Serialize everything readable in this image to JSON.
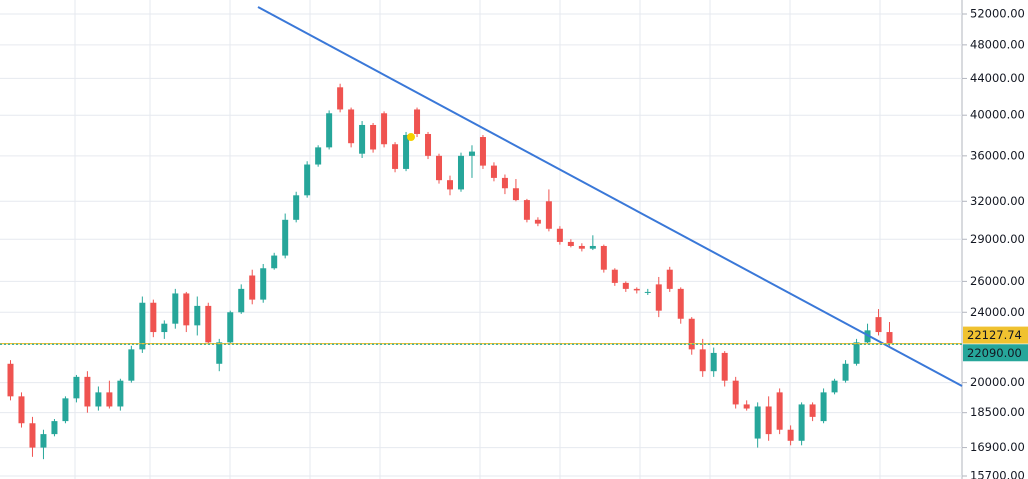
{
  "chart_data": {
    "type": "candlestick",
    "log_scale": true,
    "grid": true,
    "up_color": "#26a69a",
    "down_color": "#ef5350",
    "ylim": [
      15578,
      53920
    ],
    "yticks": [
      {
        "value": 15700,
        "label": "15700.00"
      },
      {
        "value": 16900,
        "label": "16900.00"
      },
      {
        "value": 18500,
        "label": "18500.00"
      },
      {
        "value": 20000,
        "label": "20000.00"
      },
      {
        "value": 24000,
        "label": "24000.00"
      },
      {
        "value": 26000,
        "label": "26000.00"
      },
      {
        "value": 29000,
        "label": "29000.00"
      },
      {
        "value": 32000,
        "label": "32000.00"
      },
      {
        "value": 36000,
        "label": "36000.00"
      },
      {
        "value": 40000,
        "label": "40000.00"
      },
      {
        "value": 44000,
        "label": "44000.00"
      },
      {
        "value": 48000,
        "label": "48000.00"
      },
      {
        "value": 52000,
        "label": "52000.00"
      }
    ],
    "open": [
      21000,
      19300,
      18000,
      16900,
      17500,
      18100,
      19200,
      20300,
      18800,
      19500,
      18800,
      20100,
      21800,
      24600,
      22800,
      23300,
      25200,
      23200,
      24400,
      21000,
      22200,
      24000,
      26400,
      24800,
      26900,
      27800,
      30500,
      32500,
      35200,
      36800,
      43000,
      40600,
      36200,
      39000,
      40200,
      37100,
      34800,
      40600,
      38100,
      36000,
      33800,
      33000,
      36000,
      37800,
      35100,
      34000,
      33100,
      32100,
      30500,
      32000,
      29800,
      28800,
      28500,
      28300,
      28500,
      26800,
      25900,
      25500,
      25300,
      25800,
      26800,
      25500,
      23600,
      21800,
      20600,
      21600,
      20100,
      18900,
      17300,
      18800,
      19500,
      17700,
      17200,
      18900,
      18100,
      19500,
      20100,
      21000,
      22200,
      23700,
      22800
    ],
    "high": [
      21200,
      19500,
      18300,
      17700,
      18200,
      19300,
      20400,
      20600,
      19800,
      20100,
      20200,
      22000,
      25000,
      24800,
      23500,
      25500,
      25300,
      25000,
      24600,
      22400,
      24100,
      25800,
      26800,
      27200,
      28000,
      31000,
      32800,
      35500,
      37000,
      40500,
      43400,
      40800,
      39400,
      39200,
      40400,
      37300,
      38300,
      40800,
      38300,
      36200,
      34200,
      36300,
      37000,
      38000,
      35400,
      34300,
      33900,
      32200,
      30700,
      33000,
      30000,
      29000,
      28700,
      29300,
      28600,
      26900,
      26000,
      25600,
      25500,
      26300,
      27000,
      25600,
      23700,
      22400,
      21900,
      21700,
      20300,
      19100,
      19000,
      19300,
      19700,
      17900,
      19000,
      19000,
      19700,
      20200,
      21200,
      22400,
      23300,
      24200,
      23400
    ],
    "low": [
      19100,
      17800,
      16500,
      16400,
      17400,
      18000,
      19000,
      18500,
      18600,
      18700,
      18600,
      20000,
      21600,
      22500,
      22400,
      23000,
      22800,
      22600,
      22100,
      20600,
      22100,
      23900,
      24500,
      24600,
      26800,
      27600,
      30300,
      32300,
      35000,
      36600,
      40300,
      36800,
      35800,
      36300,
      36800,
      34500,
      34600,
      37800,
      35700,
      33500,
      32500,
      32800,
      34000,
      34800,
      33700,
      32600,
      32000,
      30300,
      30000,
      29600,
      28600,
      28400,
      28100,
      28200,
      26600,
      25700,
      25300,
      25200,
      25100,
      23700,
      25300,
      23300,
      21500,
      20300,
      20300,
      19800,
      18700,
      18600,
      16900,
      17200,
      17500,
      17000,
      17000,
      18100,
      18000,
      19400,
      20000,
      20900,
      22100,
      22600,
      22000
    ],
    "close": [
      19300,
      18000,
      16900,
      17500,
      18100,
      19200,
      20300,
      18800,
      19500,
      18800,
      20100,
      21800,
      24600,
      22800,
      23300,
      25200,
      23200,
      24400,
      22200,
      22200,
      24000,
      25500,
      24800,
      26900,
      27800,
      30500,
      32500,
      35200,
      36800,
      40200,
      40600,
      37200,
      39000,
      36600,
      37100,
      34800,
      38000,
      38100,
      36000,
      33800,
      33000,
      36000,
      36400,
      35100,
      34000,
      33100,
      32100,
      30500,
      30200,
      29800,
      28800,
      28500,
      28300,
      28500,
      26800,
      25900,
      25500,
      25400,
      25300,
      24100,
      25500,
      23600,
      21800,
      20600,
      21600,
      20100,
      18900,
      18700,
      18800,
      17500,
      17700,
      17200,
      18900,
      18300,
      19500,
      20100,
      21000,
      22200,
      22900,
      22800,
      22127.74
    ],
    "price_lines": [
      {
        "value": 22127.74,
        "color": "#f0c230",
        "text_color": "#131722"
      },
      {
        "value": 22090,
        "label": "22090.00",
        "color": "#26a69a",
        "text_color": "#ffffff"
      }
    ]
  }
}
